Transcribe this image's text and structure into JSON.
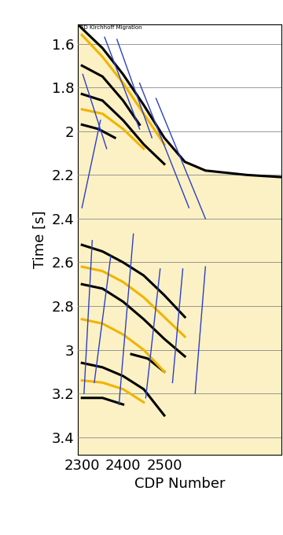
{
  "chart_data": {
    "type": "line",
    "title": "3D Kirchhoff Migration",
    "x_label": "CDP Number",
    "y_label": "Time [s]",
    "xlim": [
      2290,
      2785
    ],
    "xticks": [
      2300,
      2400,
      2500
    ],
    "ylim": [
      3.48,
      1.51
    ],
    "yticks": [
      1.6,
      1.8,
      2,
      2.2,
      2.4,
      2.6,
      2.8,
      3,
      3.2,
      3.4
    ],
    "grid": true,
    "series": [
      {
        "color": "#000000",
        "x": [
          2290,
          2300,
          2350,
          2400,
          2450,
          2500,
          2550,
          2600,
          2700,
          2785
        ],
        "values": [
          1.51,
          1.53,
          1.62,
          1.74,
          1.88,
          2.03,
          2.14,
          2.18,
          2.2,
          2.21
        ]
      },
      {
        "color": "#000000",
        "x": [
          2300,
          2350,
          2400,
          2440
        ],
        "values": [
          1.7,
          1.75,
          1.86,
          1.97
        ]
      },
      {
        "color": "#000000",
        "x": [
          2300,
          2350,
          2400,
          2450,
          2500
        ],
        "values": [
          1.83,
          1.86,
          1.95,
          2.06,
          2.15
        ]
      },
      {
        "color": "#000000",
        "x": [
          2300,
          2340,
          2380
        ],
        "values": [
          1.97,
          1.99,
          2.03
        ]
      },
      {
        "color": "#000000",
        "x": [
          2300,
          2350,
          2400,
          2450,
          2500,
          2550
        ],
        "values": [
          2.52,
          2.55,
          2.6,
          2.66,
          2.75,
          2.85
        ]
      },
      {
        "color": "#000000",
        "x": [
          2300,
          2350,
          2400,
          2450,
          2500,
          2550
        ],
        "values": [
          2.7,
          2.72,
          2.78,
          2.86,
          2.95,
          3.03
        ]
      },
      {
        "color": "#000000",
        "x": [
          2300,
          2350,
          2400,
          2450,
          2500
        ],
        "values": [
          3.06,
          3.08,
          3.12,
          3.18,
          3.3
        ]
      },
      {
        "color": "#000000",
        "x": [
          2420,
          2460,
          2500
        ],
        "values": [
          3.02,
          3.04,
          3.1
        ]
      },
      {
        "color": "#000000",
        "x": [
          2300,
          2350,
          2400
        ],
        "values": [
          3.22,
          3.22,
          3.25
        ]
      },
      {
        "color": "#f0b400",
        "x": [
          2300,
          2350,
          2400,
          2450,
          2500
        ],
        "values": [
          1.56,
          1.66,
          1.78,
          1.92,
          2.06
        ]
      },
      {
        "color": "#f0b400",
        "x": [
          2300,
          2350,
          2400,
          2450
        ],
        "values": [
          1.9,
          1.92,
          1.99,
          2.08
        ]
      },
      {
        "color": "#f0b400",
        "x": [
          2300,
          2350,
          2400,
          2450,
          2500,
          2550
        ],
        "values": [
          2.62,
          2.64,
          2.69,
          2.76,
          2.85,
          2.94
        ]
      },
      {
        "color": "#f0b400",
        "x": [
          2300,
          2350,
          2400,
          2450,
          2500
        ],
        "values": [
          2.86,
          2.88,
          2.93,
          3.0,
          3.1
        ]
      },
      {
        "color": "#f0b400",
        "x": [
          2300,
          2350,
          2400,
          2450
        ],
        "values": [
          3.14,
          3.15,
          3.18,
          3.24
        ]
      },
      {
        "color": "#2b3fc8",
        "x": [
          2302,
          2360
        ],
        "values": [
          1.74,
          2.08
        ]
      },
      {
        "color": "#2b3fc8",
        "x": [
          2355,
          2440
        ],
        "values": [
          1.57,
          1.99
        ]
      },
      {
        "color": "#2b3fc8",
        "x": [
          2385,
          2470
        ],
        "values": [
          1.58,
          2.03
        ]
      },
      {
        "color": "#2b3fc8",
        "x": [
          2440,
          2560
        ],
        "values": [
          1.78,
          2.35
        ]
      },
      {
        "color": "#2b3fc8",
        "x": [
          2480,
          2600
        ],
        "values": [
          1.85,
          2.4
        ]
      },
      {
        "color": "#2b3fc8",
        "x": [
          2300,
          2345
        ],
        "values": [
          2.35,
          1.95
        ]
      },
      {
        "color": "#2b3fc8",
        "x": [
          2305,
          2325
        ],
        "values": [
          3.2,
          2.5
        ]
      },
      {
        "color": "#2b3fc8",
        "x": [
          2330,
          2370
        ],
        "values": [
          3.15,
          2.57
        ]
      },
      {
        "color": "#2b3fc8",
        "x": [
          2390,
          2425
        ],
        "values": [
          3.25,
          2.47
        ]
      },
      {
        "color": "#2b3fc8",
        "x": [
          2455,
          2490
        ],
        "values": [
          3.22,
          2.63
        ]
      },
      {
        "color": "#2b3fc8",
        "x": [
          2520,
          2545
        ],
        "values": [
          3.15,
          2.63
        ]
      },
      {
        "color": "#2b3fc8",
        "x": [
          2575,
          2600
        ],
        "values": [
          3.2,
          2.62
        ]
      }
    ]
  }
}
